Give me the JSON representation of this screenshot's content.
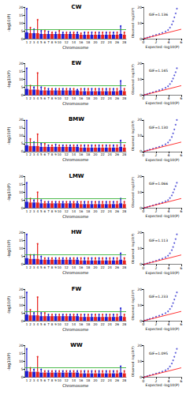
{
  "chart_data": [
    {
      "type": "manhattan",
      "title": "CW",
      "x_label": "Chromosome",
      "y_label": "-log10(P)",
      "categories": [
        "1",
        "2",
        "3",
        "4",
        "5",
        "6",
        "7",
        "8",
        "9",
        "10",
        null,
        "12",
        null,
        "14",
        null,
        "16",
        null,
        "18",
        null,
        "20",
        null,
        "22",
        null,
        "24",
        null,
        "26",
        null,
        "28"
      ],
      "values": [
        19,
        7,
        6,
        12,
        5,
        5,
        4.5,
        4,
        4,
        5,
        4,
        4,
        4,
        4,
        4,
        3.5,
        4,
        4,
        4,
        4,
        4,
        4,
        4,
        4,
        4,
        4,
        8,
        4
      ],
      "background": [
        4,
        3.5,
        3.5,
        3.5,
        3,
        3,
        3,
        3,
        3,
        3,
        3,
        3,
        3,
        3,
        3,
        2.5,
        2.5,
        2.5,
        2.5,
        2.5,
        2.5,
        2.5,
        2.5,
        2.5,
        2.5,
        2.5,
        3,
        2.5
      ],
      "threshold": 6,
      "colors": [
        "#1c1cd4",
        "#e8201a",
        "#1c1cd4",
        "#e8201a",
        "#1c1cd4",
        "#e8201a",
        "#1c1cd4",
        "#e8201a",
        "#1c1cd4",
        "#e8201a",
        "#1c1cd4",
        "#e8201a",
        "#1c1cd4",
        "#e8201a",
        "#1c1cd4",
        "#e8201a",
        "#1c1cd4",
        "#e8201a",
        "#1c1cd4",
        "#e8201a",
        "#1c1cd4",
        "#e8201a",
        "#1c1cd4",
        "#e8201a",
        "#1c1cd4",
        "#e8201a",
        "#1c1cd4",
        "#e8201a"
      ],
      "ylim": [
        0,
        20
      ],
      "yticks": [
        0,
        5,
        10,
        15,
        20
      ],
      "grid": false
    },
    {
      "type": "qq",
      "annotation": "GIF=1.136",
      "x_label": "Expected -log10(P)",
      "y_label": "Observed -log10(P)",
      "expected": [
        0.2,
        0.6,
        1,
        1.5,
        2,
        2.5,
        3,
        3.5,
        3.9,
        4.2,
        4.5,
        4.7,
        4.9,
        5.1,
        5.3
      ],
      "observed": [
        0.2,
        0.7,
        1.2,
        1.8,
        2.4,
        3,
        3.7,
        4.5,
        5.5,
        7,
        9,
        11,
        13.5,
        16,
        19
      ],
      "color": "#2f2fd0",
      "xlim": [
        0,
        6
      ],
      "xticks": [
        0,
        2,
        4,
        6
      ],
      "ylim": [
        0,
        20
      ],
      "yticks": [
        0,
        10,
        20
      ],
      "grid": false
    },
    {
      "type": "manhattan",
      "title": "EW",
      "x_label": "Chromosome",
      "y_label": "-log10(P)",
      "categories": [
        "1",
        "2",
        "3",
        "4",
        "5",
        "6",
        "7",
        "8",
        "9",
        "10",
        null,
        "12",
        null,
        "14",
        null,
        "16",
        null,
        "18",
        null,
        "20",
        null,
        "22",
        null,
        "24",
        null,
        "26",
        null,
        "28"
      ],
      "values": [
        17,
        6,
        5,
        14,
        5,
        4.5,
        4,
        4,
        4,
        4,
        4,
        4,
        4,
        4,
        3.5,
        4,
        4,
        4,
        4,
        4,
        4,
        4,
        4,
        4,
        4,
        4,
        9,
        4
      ],
      "background": [
        4,
        3.5,
        3.5,
        3.5,
        3,
        3,
        3,
        3,
        3,
        3,
        3,
        3,
        3,
        3,
        3,
        2.5,
        2.5,
        2.5,
        2.5,
        2.5,
        2.5,
        2.5,
        2.5,
        2.5,
        2.5,
        2.5,
        3,
        2.5
      ],
      "threshold": 6,
      "colors": [
        "#1c1cd4",
        "#e8201a",
        "#1c1cd4",
        "#e8201a",
        "#1c1cd4",
        "#e8201a",
        "#1c1cd4",
        "#e8201a",
        "#1c1cd4",
        "#e8201a",
        "#1c1cd4",
        "#e8201a",
        "#1c1cd4",
        "#e8201a",
        "#1c1cd4",
        "#e8201a",
        "#1c1cd4",
        "#e8201a",
        "#1c1cd4",
        "#e8201a",
        "#1c1cd4",
        "#e8201a",
        "#1c1cd4",
        "#e8201a",
        "#1c1cd4",
        "#e8201a",
        "#1c1cd4",
        "#e8201a"
      ],
      "ylim": [
        0,
        20
      ],
      "yticks": [
        0,
        5,
        10,
        15,
        20
      ],
      "grid": false
    },
    {
      "type": "qq",
      "annotation": "GIF=1.145",
      "x_label": "Expected -log10(P)",
      "y_label": "Observed -log10(P)",
      "expected": [
        0.2,
        0.6,
        1,
        1.5,
        2,
        2.5,
        3,
        3.5,
        3.9,
        4.2,
        4.5,
        4.7,
        4.9,
        5.1,
        5.3
      ],
      "observed": [
        0.2,
        0.7,
        1.2,
        1.8,
        2.4,
        3.1,
        3.8,
        4.6,
        5.6,
        7,
        8.8,
        10.5,
        12.5,
        14.5,
        17
      ],
      "color": "#2f2fd0",
      "xlim": [
        0,
        6
      ],
      "xticks": [
        0,
        2,
        4,
        6
      ],
      "ylim": [
        0,
        20
      ],
      "yticks": [
        0,
        10,
        20
      ],
      "grid": false
    },
    {
      "type": "manhattan",
      "title": "BMW",
      "x_label": "Chromosome",
      "y_label": "-log10(P)",
      "categories": [
        "1",
        "2",
        "3",
        "4",
        "5",
        "6",
        "7",
        "8",
        "9",
        "10",
        null,
        "12",
        null,
        "14",
        null,
        "16",
        null,
        "18",
        null,
        "20",
        null,
        "22",
        null,
        "24",
        null,
        "26",
        null,
        "28"
      ],
      "values": [
        20,
        8,
        6,
        11,
        5,
        5,
        4,
        4,
        4.5,
        4,
        4,
        4,
        4,
        4,
        4,
        4,
        4,
        4,
        4,
        4,
        4,
        4,
        4,
        4,
        4,
        4,
        7,
        4
      ],
      "background": [
        4,
        3.5,
        3.5,
        3.5,
        3,
        3,
        3,
        3,
        3,
        3,
        3,
        3,
        3,
        3,
        3,
        2.5,
        2.5,
        2.5,
        2.5,
        2.5,
        2.5,
        2.5,
        2.5,
        2.5,
        2.5,
        2.5,
        3,
        2.5
      ],
      "threshold": 6,
      "colors": [
        "#1c1cd4",
        "#e8201a",
        "#1c1cd4",
        "#e8201a",
        "#1c1cd4",
        "#e8201a",
        "#1c1cd4",
        "#e8201a",
        "#1c1cd4",
        "#e8201a",
        "#1c1cd4",
        "#e8201a",
        "#1c1cd4",
        "#e8201a",
        "#1c1cd4",
        "#e8201a",
        "#1c1cd4",
        "#e8201a",
        "#1c1cd4",
        "#e8201a",
        "#1c1cd4",
        "#e8201a",
        "#1c1cd4",
        "#e8201a",
        "#1c1cd4",
        "#e8201a",
        "#1c1cd4",
        "#e8201a"
      ],
      "ylim": [
        0,
        20
      ],
      "yticks": [
        0,
        5,
        10,
        15,
        20
      ],
      "grid": false
    },
    {
      "type": "qq",
      "annotation": "GIF=1.130",
      "x_label": "Expected -log10(P)",
      "y_label": "Observed -log10(P)",
      "expected": [
        0.2,
        0.6,
        1,
        1.5,
        2,
        2.5,
        3,
        3.5,
        3.9,
        4.2,
        4.5,
        4.7,
        4.9,
        5.1,
        5.3
      ],
      "observed": [
        0.2,
        0.7,
        1.2,
        1.8,
        2.4,
        3,
        3.7,
        4.6,
        5.7,
        7.2,
        9.2,
        11.5,
        14,
        17,
        20
      ],
      "color": "#2f2fd0",
      "xlim": [
        0,
        6
      ],
      "xticks": [
        0,
        2,
        4,
        6
      ],
      "ylim": [
        0,
        20
      ],
      "yticks": [
        0,
        10,
        20
      ],
      "grid": false
    },
    {
      "type": "manhattan",
      "title": "LMW",
      "x_label": "Chromosome",
      "y_label": "-log10(P)",
      "categories": [
        "1",
        "2",
        "3",
        "4",
        "5",
        "6",
        "7",
        "8",
        "9",
        "10",
        null,
        "12",
        null,
        "14",
        null,
        "16",
        null,
        "18",
        null,
        "20",
        null,
        "22",
        null,
        "24",
        null,
        "26",
        null,
        "28"
      ],
      "values": [
        16,
        6,
        5,
        10,
        5,
        4,
        4,
        4,
        4,
        4,
        4,
        4,
        4,
        4,
        4,
        4,
        4,
        4,
        4,
        4,
        4,
        4,
        4,
        4,
        4,
        4,
        6,
        4
      ],
      "background": [
        4,
        3.5,
        3.5,
        3.5,
        3,
        3,
        3,
        3,
        3,
        3,
        3,
        3,
        3,
        3,
        3,
        2.5,
        2.5,
        2.5,
        2.5,
        2.5,
        2.5,
        2.5,
        2.5,
        2.5,
        2.5,
        2.5,
        3,
        2.5
      ],
      "threshold": 6,
      "colors": [
        "#1c1cd4",
        "#e8201a",
        "#1c1cd4",
        "#e8201a",
        "#1c1cd4",
        "#e8201a",
        "#1c1cd4",
        "#e8201a",
        "#1c1cd4",
        "#e8201a",
        "#1c1cd4",
        "#e8201a",
        "#1c1cd4",
        "#e8201a",
        "#1c1cd4",
        "#e8201a",
        "#1c1cd4",
        "#e8201a",
        "#1c1cd4",
        "#e8201a",
        "#1c1cd4",
        "#e8201a",
        "#1c1cd4",
        "#e8201a",
        "#1c1cd4",
        "#e8201a",
        "#1c1cd4",
        "#e8201a"
      ],
      "ylim": [
        0,
        20
      ],
      "yticks": [
        0,
        5,
        10,
        15,
        20
      ],
      "grid": false
    },
    {
      "type": "qq",
      "annotation": "GIF=1.066",
      "x_label": "Expected -log10(P)",
      "y_label": "Observed -log10(P)",
      "expected": [
        0.2,
        0.6,
        1,
        1.5,
        2,
        2.5,
        3,
        3.5,
        3.9,
        4.2,
        4.5,
        4.7,
        4.9,
        5.1,
        5.3
      ],
      "observed": [
        0.2,
        0.6,
        1.1,
        1.6,
        2.2,
        2.8,
        3.4,
        4.2,
        5,
        6.3,
        8,
        9.8,
        11.8,
        13.8,
        16
      ],
      "color": "#2f2fd0",
      "xlim": [
        0,
        6
      ],
      "xticks": [
        0,
        2,
        4,
        6
      ],
      "ylim": [
        0,
        20
      ],
      "yticks": [
        0,
        10,
        20
      ],
      "grid": false
    },
    {
      "type": "manhattan",
      "title": "HW",
      "x_label": "Chromosome",
      "y_label": "-log10(P)",
      "categories": [
        "1",
        "2",
        "3",
        "4",
        "5",
        "6",
        "7",
        "8",
        "9",
        "10",
        null,
        "12",
        null,
        "14",
        null,
        "16",
        null,
        "18",
        null,
        "20",
        null,
        "22",
        null,
        "24",
        null,
        "26",
        null,
        "28"
      ],
      "values": [
        19,
        6,
        6,
        13,
        5,
        4,
        4,
        4,
        4,
        4,
        4,
        4,
        4,
        4,
        4,
        4,
        4,
        4,
        4,
        4,
        4,
        4,
        4,
        4,
        4,
        4,
        7,
        4
      ],
      "background": [
        4,
        3.5,
        3.5,
        3.5,
        3,
        3,
        3,
        3,
        3,
        3,
        3,
        3,
        3,
        3,
        3,
        2.5,
        2.5,
        2.5,
        2.5,
        2.5,
        2.5,
        2.5,
        2.5,
        2.5,
        2.5,
        2.5,
        3,
        2.5
      ],
      "threshold": 6,
      "colors": [
        "#1c1cd4",
        "#e8201a",
        "#1c1cd4",
        "#e8201a",
        "#1c1cd4",
        "#e8201a",
        "#1c1cd4",
        "#e8201a",
        "#1c1cd4",
        "#e8201a",
        "#1c1cd4",
        "#e8201a",
        "#1c1cd4",
        "#e8201a",
        "#1c1cd4",
        "#e8201a",
        "#1c1cd4",
        "#e8201a",
        "#1c1cd4",
        "#e8201a",
        "#1c1cd4",
        "#e8201a",
        "#1c1cd4",
        "#e8201a",
        "#1c1cd4",
        "#e8201a",
        "#1c1cd4",
        "#e8201a"
      ],
      "ylim": [
        0,
        20
      ],
      "yticks": [
        0,
        5,
        10,
        15,
        20
      ],
      "grid": false
    },
    {
      "type": "qq",
      "annotation": "GIF=1.113",
      "x_label": "Expected -log10(P)",
      "y_label": "Observed -log10(P)",
      "expected": [
        0.2,
        0.6,
        1,
        1.5,
        2,
        2.5,
        3,
        3.5,
        3.9,
        4.2,
        4.5,
        4.7,
        4.9,
        5.1,
        5.3
      ],
      "observed": [
        0.2,
        0.7,
        1.2,
        1.7,
        2.3,
        3,
        3.7,
        4.5,
        5.5,
        7,
        9,
        11,
        13.5,
        16,
        19
      ],
      "color": "#2f2fd0",
      "xlim": [
        0,
        6
      ],
      "xticks": [
        0,
        2,
        4,
        6
      ],
      "ylim": [
        0,
        20
      ],
      "yticks": [
        0,
        10,
        20
      ],
      "grid": false
    },
    {
      "type": "manhattan",
      "title": "FW",
      "x_label": "Chromosome",
      "y_label": "-log10(P)",
      "categories": [
        "1",
        "2",
        "3",
        "4",
        "5",
        "6",
        "7",
        "8",
        "9",
        "10",
        null,
        "12",
        null,
        "14",
        null,
        "16",
        null,
        "18",
        null,
        "20",
        null,
        "22",
        null,
        "24",
        null,
        "26",
        null,
        "28"
      ],
      "values": [
        18,
        7,
        5,
        15,
        5,
        5,
        4,
        4,
        4,
        4,
        4,
        4,
        4,
        4,
        4,
        4,
        4,
        4,
        4,
        4,
        4,
        4,
        4,
        4,
        4,
        4,
        8,
        4
      ],
      "background": [
        4,
        3.5,
        3.5,
        3.5,
        3,
        3,
        3,
        3,
        3,
        3,
        3,
        3,
        3,
        3,
        3,
        2.5,
        2.5,
        2.5,
        2.5,
        2.5,
        2.5,
        2.5,
        2.5,
        2.5,
        2.5,
        2.5,
        3,
        2.5
      ],
      "threshold": 6,
      "colors": [
        "#1c1cd4",
        "#e8201a",
        "#1c1cd4",
        "#e8201a",
        "#1c1cd4",
        "#e8201a",
        "#1c1cd4",
        "#e8201a",
        "#1c1cd4",
        "#e8201a",
        "#1c1cd4",
        "#e8201a",
        "#1c1cd4",
        "#e8201a",
        "#1c1cd4",
        "#e8201a",
        "#1c1cd4",
        "#e8201a",
        "#1c1cd4",
        "#e8201a",
        "#1c1cd4",
        "#e8201a",
        "#1c1cd4",
        "#e8201a",
        "#1c1cd4",
        "#e8201a",
        "#1c1cd4",
        "#e8201a"
      ],
      "ylim": [
        0,
        20
      ],
      "yticks": [
        0,
        5,
        10,
        15,
        20
      ],
      "grid": false
    },
    {
      "type": "qq",
      "annotation": "GIF=1.233",
      "x_label": "Expected -log10(P)",
      "y_label": "Observed -log10(P)",
      "expected": [
        0.2,
        0.6,
        1,
        1.5,
        2,
        2.5,
        3,
        3.5,
        3.9,
        4.2,
        4.5,
        4.7,
        4.9,
        5.1,
        5.3
      ],
      "observed": [
        0.2,
        0.8,
        1.3,
        1.9,
        2.6,
        3.3,
        4,
        4.9,
        6,
        7.5,
        9.3,
        11.3,
        13.5,
        15.8,
        18
      ],
      "color": "#2f2fd0",
      "xlim": [
        0,
        6
      ],
      "xticks": [
        0,
        2,
        4,
        6
      ],
      "ylim": [
        0,
        20
      ],
      "yticks": [
        0,
        10,
        20
      ],
      "grid": false
    },
    {
      "type": "manhattan",
      "title": "WW",
      "x_label": "Chromosome",
      "y_label": "-log10(P)",
      "categories": [
        "1",
        "2",
        "3",
        "4",
        "5",
        "6",
        "7",
        "8",
        "9",
        "10",
        null,
        "12",
        null,
        "14",
        null,
        "16",
        null,
        "18",
        null,
        "20",
        null,
        "22",
        null,
        "24",
        null,
        "26",
        null,
        "28"
      ],
      "values": [
        18,
        6,
        5,
        13,
        5,
        4,
        4,
        4,
        4,
        4,
        4,
        4,
        4,
        4,
        4,
        4,
        4,
        4,
        4,
        4,
        4,
        4,
        4,
        4,
        4,
        4,
        7,
        4
      ],
      "background": [
        4,
        3.5,
        3.5,
        3.5,
        3,
        3,
        3,
        3,
        3,
        3,
        3,
        3,
        3,
        3,
        3,
        2.5,
        2.5,
        2.5,
        2.5,
        2.5,
        2.5,
        2.5,
        2.5,
        2.5,
        2.5,
        2.5,
        3,
        2.5
      ],
      "threshold": 6,
      "colors": [
        "#1c1cd4",
        "#e8201a",
        "#1c1cd4",
        "#e8201a",
        "#1c1cd4",
        "#e8201a",
        "#1c1cd4",
        "#e8201a",
        "#1c1cd4",
        "#e8201a",
        "#1c1cd4",
        "#e8201a",
        "#1c1cd4",
        "#e8201a",
        "#1c1cd4",
        "#e8201a",
        "#1c1cd4",
        "#e8201a",
        "#1c1cd4",
        "#e8201a",
        "#1c1cd4",
        "#e8201a",
        "#1c1cd4",
        "#e8201a",
        "#1c1cd4",
        "#e8201a",
        "#1c1cd4",
        "#e8201a"
      ],
      "ylim": [
        0,
        20
      ],
      "yticks": [
        0,
        5,
        10,
        15,
        20
      ],
      "grid": false
    },
    {
      "type": "qq",
      "annotation": "GIF=1.095",
      "x_label": "Expected -log10(P)",
      "y_label": "Observed -log10(P)",
      "expected": [
        0.2,
        0.6,
        1,
        1.5,
        2,
        2.5,
        3,
        3.5,
        3.9,
        4.2,
        4.5,
        4.7,
        4.9,
        5.1,
        5.3
      ],
      "observed": [
        0.2,
        0.7,
        1.2,
        1.7,
        2.3,
        2.9,
        3.6,
        4.4,
        5.4,
        6.8,
        8.7,
        10.7,
        13,
        15.5,
        18
      ],
      "color": "#2f2fd0",
      "xlim": [
        0,
        6
      ],
      "xticks": [
        0,
        2,
        4,
        6
      ],
      "ylim": [
        0,
        20
      ],
      "yticks": [
        0,
        10,
        20
      ],
      "grid": false
    }
  ]
}
